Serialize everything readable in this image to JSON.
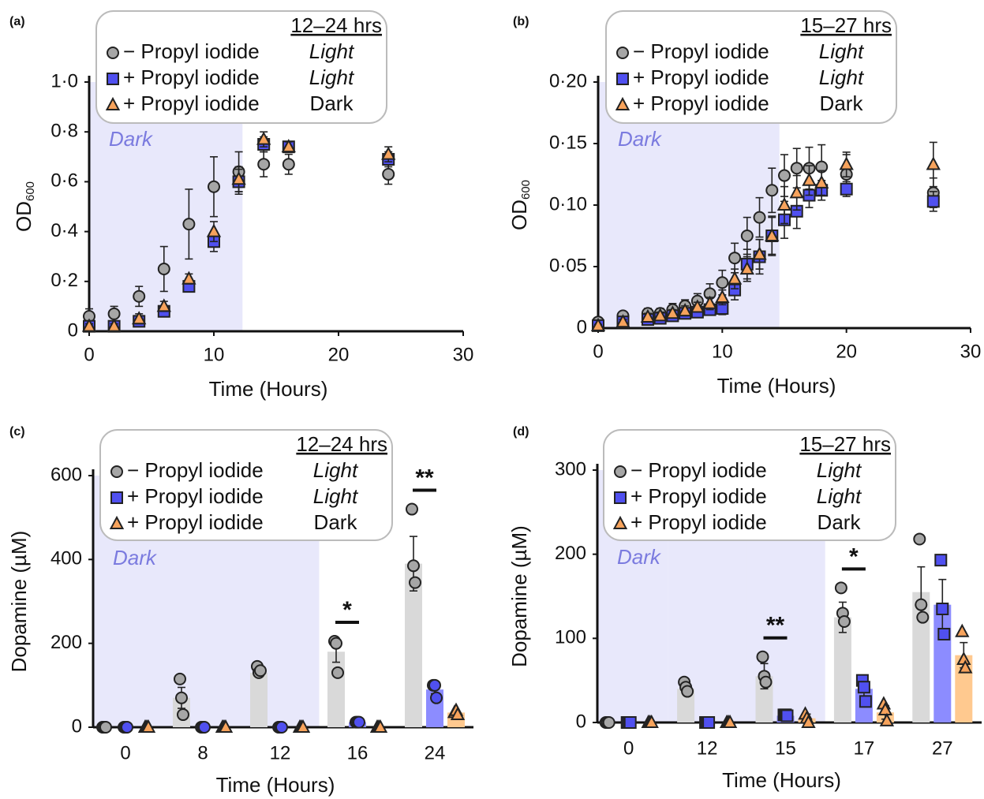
{
  "chart_data": [
    {
      "type": "scatter",
      "panel": "(a)",
      "x_label": "Time (Hours)",
      "y_label": "OD",
      "y_label_sub": "600",
      "legend_title": "12–24 hrs",
      "dark_label": "Dark",
      "dark_until": 12.3,
      "xlim": [
        0,
        30
      ],
      "xticks": [
        0,
        10,
        20,
        30
      ],
      "ylim": [
        0,
        1.0
      ],
      "yticks": [
        0,
        {
          "value": 0.2,
          "label": "0·2"
        },
        {
          "value": 0.4,
          "label": "0·4"
        },
        {
          "value": 0.6,
          "label": "0·6"
        },
        {
          "value": 0.8,
          "label": "0·8"
        },
        {
          "value": 1.0,
          "label": "1·0"
        }
      ],
      "x": [
        0,
        2,
        4,
        6,
        8,
        10,
        12,
        14,
        16,
        24
      ],
      "series": [
        {
          "name": "− Propyl iodide",
          "condition": "Light",
          "condition_italic": true,
          "marker": "circle",
          "color": "#a6a6a6",
          "values": [
            0.06,
            0.07,
            0.14,
            0.25,
            0.43,
            0.58,
            0.64,
            0.67,
            0.67,
            0.63
          ],
          "errors": [
            0.03,
            0.03,
            0.04,
            0.09,
            0.14,
            0.12,
            0.08,
            0.05,
            0.04,
            0.04
          ]
        },
        {
          "name": "+ Propyl iodide",
          "condition": "Light",
          "condition_italic": true,
          "marker": "square",
          "color": "#5050f0",
          "values": [
            0.02,
            0.02,
            0.04,
            0.08,
            0.18,
            0.36,
            0.6,
            0.75,
            0.74,
            0.69
          ],
          "errors": [
            0.01,
            0.01,
            0.02,
            0.02,
            0.02,
            0.04,
            0.05,
            0.03,
            0.02,
            0.03
          ]
        },
        {
          "name": "+ Propyl iodide",
          "condition": "Dark",
          "condition_italic": false,
          "marker": "triangle",
          "color": "#f7a35c",
          "values": [
            0.02,
            0.02,
            0.05,
            0.1,
            0.21,
            0.4,
            0.61,
            0.77,
            0.74,
            0.71
          ],
          "errors": [
            0.01,
            0.01,
            0.02,
            0.02,
            0.02,
            0.04,
            0.05,
            0.03,
            0.02,
            0.03
          ]
        }
      ]
    },
    {
      "type": "scatter",
      "panel": "(b)",
      "x_label": "Time (Hours)",
      "y_label": "OD",
      "y_label_sub": "600",
      "legend_title": "15–27 hrs",
      "dark_label": "Dark",
      "dark_until": 14.6,
      "xlim": [
        0,
        30
      ],
      "xticks": [
        0,
        10,
        20,
        30
      ],
      "ylim": [
        0,
        0.2
      ],
      "yticks": [
        0,
        {
          "value": 0.05,
          "label": "0·05"
        },
        {
          "value": 0.1,
          "label": "0·10"
        },
        {
          "value": 0.15,
          "label": "0·15"
        },
        {
          "value": 0.2,
          "label": "0·20"
        }
      ],
      "x": [
        0,
        2,
        4,
        5,
        6,
        7,
        8,
        9,
        10,
        11,
        12,
        13,
        14,
        15,
        16,
        17,
        18,
        20,
        27
      ],
      "series": [
        {
          "name": "− Propyl iodide",
          "condition": "Light",
          "condition_italic": true,
          "marker": "circle",
          "color": "#a6a6a6",
          "values": [
            0.005,
            0.01,
            0.012,
            0.012,
            0.015,
            0.018,
            0.022,
            0.028,
            0.037,
            0.057,
            0.075,
            0.09,
            0.112,
            0.124,
            0.13,
            0.13,
            0.131,
            0.125,
            0.11
          ],
          "errors": [
            0.002,
            0.003,
            0.004,
            0.004,
            0.005,
            0.005,
            0.006,
            0.008,
            0.01,
            0.012,
            0.015,
            0.016,
            0.018,
            0.017,
            0.016,
            0.017,
            0.018,
            0.016,
            0.012
          ]
        },
        {
          "name": "+ Propyl iodide",
          "condition": "Light",
          "condition_italic": true,
          "marker": "square",
          "color": "#5050f0",
          "values": [
            0.002,
            0.005,
            0.007,
            0.008,
            0.01,
            0.012,
            0.013,
            0.015,
            0.016,
            0.031,
            0.052,
            0.058,
            0.075,
            0.088,
            0.095,
            0.108,
            0.112,
            0.113,
            0.103
          ],
          "errors": [
            0.001,
            0.002,
            0.002,
            0.003,
            0.003,
            0.003,
            0.004,
            0.004,
            0.005,
            0.008,
            0.012,
            0.014,
            0.016,
            0.015,
            0.014,
            0.01,
            0.008,
            0.006,
            0.008
          ]
        },
        {
          "name": "+ Propyl iodide",
          "condition": "Dark",
          "condition_italic": false,
          "marker": "triangle",
          "color": "#f7a35c",
          "values": [
            0.002,
            0.005,
            0.009,
            0.01,
            0.012,
            0.014,
            0.017,
            0.02,
            0.025,
            0.04,
            0.048,
            0.06,
            0.075,
            0.1,
            0.11,
            0.12,
            0.118,
            0.133,
            0.133
          ],
          "errors": [
            0.001,
            0.002,
            0.003,
            0.003,
            0.003,
            0.004,
            0.004,
            0.005,
            0.006,
            0.008,
            0.01,
            0.012,
            0.015,
            0.015,
            0.014,
            0.012,
            0.01,
            0.01,
            0.018
          ]
        }
      ]
    },
    {
      "type": "bar",
      "panel": "(c)",
      "x_label": "Time (Hours)",
      "y_label": "Dopamine (µM)",
      "legend_title": "12–24 hrs",
      "dark_label": "Dark",
      "categories": [
        "0",
        "8",
        "12",
        "16",
        "24"
      ],
      "dark": [
        true,
        true,
        true,
        false,
        false
      ],
      "significance": [
        null,
        null,
        null,
        "*",
        "**"
      ],
      "ylim": [
        0,
        600
      ],
      "yticks": [
        0,
        200,
        400,
        600
      ],
      "series": [
        {
          "name": "− Propyl iodide",
          "condition": "Light",
          "condition_italic": true,
          "marker": "circle",
          "color": "#a6a6a6",
          "bar_color": "#d9d9d9",
          "values": [
            0,
            70,
            130,
            180,
            390
          ],
          "errors": [
            1,
            25,
            5,
            25,
            65
          ],
          "points": [
            [
              0,
              0,
              0
            ],
            [
              115,
              70,
              30
            ],
            [
              145,
              130,
              135
            ],
            [
              205,
              200,
              130
            ],
            [
              520,
              385,
              345
            ]
          ]
        },
        {
          "name": "+ Propyl iodide",
          "condition": "Light",
          "condition_italic": true,
          "marker": "circle",
          "legend_marker": "square",
          "color": "#5050f0",
          "bar_color": "#8c8cff",
          "values": [
            0,
            0,
            0,
            12,
            90
          ],
          "errors": [
            0,
            0,
            0,
            2,
            10
          ],
          "points": [
            [
              0,
              0,
              0
            ],
            [
              0,
              0,
              0
            ],
            [
              0,
              0,
              0
            ],
            [
              12,
              12,
              12
            ],
            [
              100,
              100,
              70
            ]
          ]
        },
        {
          "name": "+ Propyl iodide",
          "condition": "Dark",
          "condition_italic": false,
          "marker": "triangle",
          "color": "#f7a35c",
          "bar_color": "#ffc98f",
          "values": [
            0,
            0,
            0,
            0,
            35
          ],
          "errors": [
            0,
            0,
            0,
            0,
            3
          ],
          "points": [
            [
              0,
              0,
              0
            ],
            [
              0,
              0,
              0
            ],
            [
              0,
              0,
              0
            ],
            [
              0,
              0,
              0
            ],
            [
              35,
              40,
              30
            ]
          ]
        }
      ]
    },
    {
      "type": "bar",
      "panel": "(d)",
      "x_label": "Time (Hours)",
      "y_label": "Dopamine (µM)",
      "legend_title": "15–27 hrs",
      "dark_label": "Dark",
      "categories": [
        "0",
        "12",
        "15",
        "17",
        "27"
      ],
      "dark": [
        true,
        true,
        true,
        false,
        false
      ],
      "significance": [
        null,
        null,
        "**",
        "*",
        null
      ],
      "ylim": [
        0,
        300
      ],
      "yticks": [
        0,
        100,
        200,
        300
      ],
      "series": [
        {
          "name": "− Propyl iodide",
          "condition": "Light",
          "condition_italic": true,
          "marker": "circle",
          "color": "#a6a6a6",
          "bar_color": "#d9d9d9",
          "values": [
            0,
            40,
            55,
            125,
            155
          ],
          "errors": [
            0,
            3,
            15,
            18,
            30
          ],
          "points": [
            [
              0,
              0,
              0
            ],
            [
              48,
              42,
              37
            ],
            [
              78,
              55,
              48
            ],
            [
              160,
              130,
              120
            ],
            [
              218,
              140,
              125
            ]
          ]
        },
        {
          "name": "+ Propyl iodide",
          "condition": "Light",
          "condition_italic": true,
          "marker": "square",
          "color": "#5050f0",
          "bar_color": "#8c8cff",
          "values": [
            0,
            0,
            8,
            40,
            140
          ],
          "errors": [
            0,
            0,
            2,
            10,
            30
          ],
          "points": [
            [
              0,
              0,
              0
            ],
            [
              0,
              0,
              0
            ],
            [
              9,
              9,
              8
            ],
            [
              50,
              42,
              25
            ],
            [
              193,
              135,
              105
            ]
          ]
        },
        {
          "name": "+ Propyl iodide",
          "condition": "Dark",
          "condition_italic": false,
          "marker": "triangle",
          "color": "#f7a35c",
          "bar_color": "#ffc98f",
          "values": [
            0,
            0,
            5,
            12,
            80
          ],
          "errors": [
            0,
            0,
            5,
            8,
            15
          ],
          "points": [
            [
              0,
              0,
              0
            ],
            [
              0,
              0,
              0
            ],
            [
              10,
              5,
              0
            ],
            [
              22,
              15,
              2
            ],
            [
              108,
              75,
              65
            ]
          ]
        }
      ]
    }
  ]
}
